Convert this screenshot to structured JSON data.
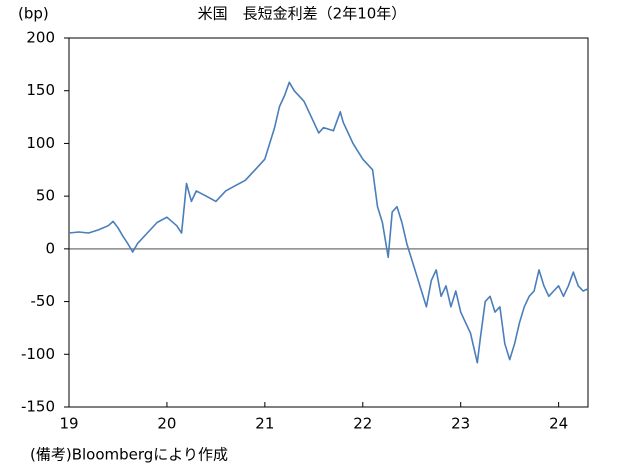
{
  "chart_data": {
    "type": "line",
    "title": "米国　長短金利差（2年10年）",
    "y_label": "(bp)",
    "note": "(備考)Bloombergにより作成",
    "x": [
      19,
      19.1,
      19.2,
      19.3,
      19.4,
      19.45,
      19.5,
      19.55,
      19.6,
      19.65,
      19.7,
      19.8,
      19.9,
      20,
      20.1,
      20.15,
      20.2,
      20.25,
      20.3,
      20.4,
      20.5,
      20.6,
      20.7,
      20.8,
      20.9,
      21,
      21.1,
      21.15,
      21.2,
      21.25,
      21.3,
      21.4,
      21.5,
      21.55,
      21.6,
      21.7,
      21.77,
      21.8,
      21.9,
      22,
      22.1,
      22.15,
      22.2,
      22.26,
      22.3,
      22.35,
      22.4,
      22.45,
      22.5,
      22.55,
      22.6,
      22.65,
      22.7,
      22.75,
      22.8,
      22.85,
      22.9,
      22.95,
      23,
      23.05,
      23.1,
      23.17,
      23.2,
      23.25,
      23.3,
      23.35,
      23.4,
      23.45,
      23.5,
      23.55,
      23.6,
      23.65,
      23.7,
      23.75,
      23.8,
      23.85,
      23.9,
      23.95,
      24,
      24.05,
      24.1,
      24.15,
      24.2,
      24.25,
      24.3
    ],
    "values": [
      15,
      16,
      15,
      18,
      22,
      26,
      20,
      12,
      5,
      -3,
      5,
      15,
      25,
      30,
      22,
      15,
      62,
      45,
      55,
      50,
      45,
      55,
      60,
      65,
      75,
      85,
      115,
      135,
      145,
      158,
      150,
      140,
      120,
      110,
      115,
      112,
      130,
      120,
      100,
      85,
      75,
      40,
      25,
      -8,
      35,
      40,
      25,
      5,
      -10,
      -25,
      -40,
      -55,
      -30,
      -20,
      -45,
      -35,
      -55,
      -40,
      -60,
      -70,
      -80,
      -108,
      -85,
      -50,
      -45,
      -60,
      -55,
      -90,
      -105,
      -90,
      -70,
      -55,
      -45,
      -40,
      -20,
      -35,
      -45,
      -40,
      -35,
      -45,
      -35,
      -22,
      -35,
      -40,
      -38
    ],
    "color": "#4a7ebb",
    "xlim": [
      19,
      24.3
    ],
    "xticks": [
      19,
      20,
      21,
      22,
      23,
      24
    ],
    "ylim": [
      -150,
      200
    ],
    "yticks": [
      -150,
      -100,
      -50,
      0,
      50,
      100,
      150,
      200
    ]
  }
}
